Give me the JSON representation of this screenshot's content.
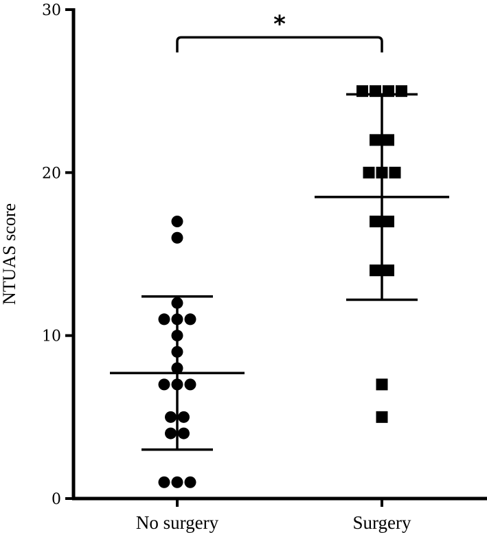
{
  "chart_data": {
    "type": "scatter",
    "title": "",
    "xlabel": "",
    "ylabel": "NTUAS score",
    "ylim": [
      0,
      30
    ],
    "yticks": [
      0,
      10,
      20,
      30
    ],
    "categories": [
      "No surgery",
      "Surgery"
    ],
    "grid": false,
    "series": [
      {
        "category": "No surgery",
        "marker": "circle",
        "values": [
          17,
          16,
          12,
          11,
          11,
          11,
          10,
          9,
          8,
          7,
          7,
          7,
          5,
          5,
          4,
          4,
          1,
          1,
          1
        ],
        "mean": 7.7,
        "sd_upper": 12.4,
        "sd_lower": 3.0
      },
      {
        "category": "Surgery",
        "marker": "square",
        "values": [
          25,
          25,
          25,
          25,
          22,
          22,
          20,
          20,
          20,
          17,
          17,
          14,
          14,
          7,
          5
        ],
        "mean": 18.5,
        "sd_upper": 24.8,
        "sd_lower": 12.2
      }
    ],
    "annotations": [
      {
        "text": "*",
        "between": [
          "No surgery",
          "Surgery"
        ],
        "y": 28.5
      }
    ],
    "color": "#000000"
  }
}
